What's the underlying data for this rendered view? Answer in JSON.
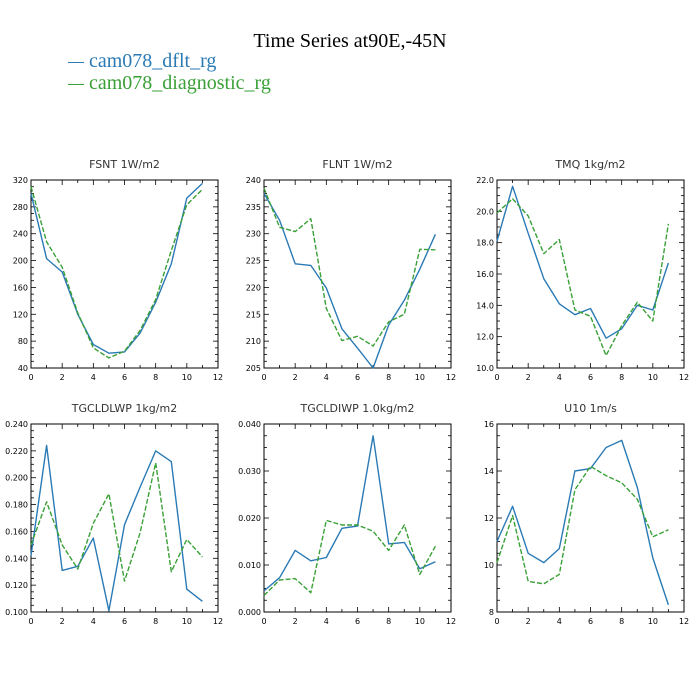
{
  "title": "Time Series at90E,-45N",
  "legend": [
    {
      "name": "cam078_dflt_rg",
      "color": "#2a7ab5"
    },
    {
      "name": "cam078_diagnostic_rg",
      "color": "#3aa037"
    }
  ],
  "chart_data": [
    {
      "type": "line",
      "title": "FSNT   1W/m2",
      "x": [
        0,
        1,
        2,
        3,
        4,
        5,
        6,
        7,
        8,
        9,
        10,
        11
      ],
      "xlim": [
        0,
        12
      ],
      "xticks": [
        "0",
        "2",
        "4",
        "6",
        "8",
        "10",
        "12"
      ],
      "ylim": [
        40,
        320
      ],
      "yticks": [
        "40",
        "80",
        "120",
        "160",
        "200",
        "240",
        "280",
        "320"
      ],
      "series": [
        {
          "name": "cam078_dflt_rg",
          "values": [
            300,
            203,
            183,
            120,
            75,
            62,
            64,
            92,
            138,
            195,
            293,
            315
          ]
        },
        {
          "name": "cam078_diagnostic_rg",
          "values": [
            310,
            228,
            190,
            122,
            70,
            55,
            65,
            96,
            142,
            215,
            283,
            306
          ]
        }
      ]
    },
    {
      "type": "line",
      "title": "FLNT   1W/m2",
      "x": [
        0,
        1,
        2,
        3,
        4,
        5,
        6,
        7,
        8,
        9,
        10,
        11
      ],
      "xlim": [
        0,
        12
      ],
      "xticks": [
        "0",
        "2",
        "4",
        "6",
        "8",
        "10",
        "12"
      ],
      "ylim": [
        205,
        240
      ],
      "yticks": [
        "205",
        "210",
        "215",
        "220",
        "225",
        "230",
        "235",
        "240"
      ],
      "series": [
        {
          "name": "cam078_dflt_rg",
          "values": [
            237.5,
            232.5,
            224.4,
            224.1,
            219.9,
            212.3,
            208.7,
            205,
            213,
            217.6,
            223.4,
            229.9
          ]
        },
        {
          "name": "cam078_diagnostic_rg",
          "values": [
            238.5,
            231.2,
            230.4,
            232.8,
            216.1,
            210.1,
            210.9,
            209.1,
            213.6,
            215.0,
            227.1,
            227.0
          ]
        }
      ]
    },
    {
      "type": "line",
      "title": "TMQ   1kg/m2",
      "x": [
        0,
        1,
        2,
        3,
        4,
        5,
        6,
        7,
        8,
        9,
        10,
        11
      ],
      "xlim": [
        0,
        12
      ],
      "xticks": [
        "0",
        "2",
        "4",
        "6",
        "8",
        "10",
        "12"
      ],
      "ylim": [
        10,
        22
      ],
      "yticks": [
        "10.0",
        "12.0",
        "14.0",
        "16.0",
        "18.0",
        "20.0",
        "22.0"
      ],
      "series": [
        {
          "name": "cam078_dflt_rg",
          "values": [
            18.1,
            21.6,
            18.6,
            15.7,
            14.1,
            13.4,
            13.8,
            11.9,
            12.5,
            14.0,
            13.7,
            16.7
          ]
        },
        {
          "name": "cam078_diagnostic_rg",
          "values": [
            19.9,
            20.8,
            19.7,
            17.3,
            18.2,
            13.7,
            13.3,
            10.8,
            12.7,
            14.2,
            13.0,
            19.2
          ]
        }
      ]
    },
    {
      "type": "line",
      "title": "TGCLDLWP   1kg/m2",
      "x": [
        0,
        1,
        2,
        3,
        4,
        5,
        6,
        7,
        8,
        9,
        10,
        11
      ],
      "xlim": [
        0,
        12
      ],
      "xticks": [
        "0",
        "2",
        "4",
        "6",
        "8",
        "10",
        "12"
      ],
      "ylim": [
        0.1,
        0.24
      ],
      "yticks": [
        "0.100",
        "0.120",
        "0.140",
        "0.160",
        "0.180",
        "0.200",
        "0.220",
        "0.240"
      ],
      "series": [
        {
          "name": "cam078_dflt_rg",
          "values": [
            0.142,
            0.224,
            0.131,
            0.134,
            0.155,
            0.101,
            0.165,
            0.193,
            0.22,
            0.212,
            0.117,
            0.108
          ]
        },
        {
          "name": "cam078_diagnostic_rg",
          "values": [
            0.15,
            0.182,
            0.15,
            0.132,
            0.166,
            0.188,
            0.123,
            0.159,
            0.211,
            0.13,
            0.154,
            0.141
          ]
        }
      ]
    },
    {
      "type": "line",
      "title": "TGCLDIWP   1.0kg/m2",
      "x": [
        0,
        1,
        2,
        3,
        4,
        5,
        6,
        7,
        8,
        9,
        10,
        11
      ],
      "xlim": [
        0,
        12
      ],
      "xticks": [
        "0",
        "2",
        "4",
        "6",
        "8",
        "10",
        "12"
      ],
      "ylim": [
        0,
        0.04
      ],
      "yticks": [
        "0.000",
        "0.010",
        "0.020",
        "0.030",
        "0.040"
      ],
      "series": [
        {
          "name": "cam078_dflt_rg",
          "values": [
            0.0045,
            0.0073,
            0.0131,
            0.0109,
            0.0116,
            0.0178,
            0.0183,
            0.0375,
            0.0145,
            0.0148,
            0.0092,
            0.0107
          ]
        },
        {
          "name": "cam078_diagnostic_rg",
          "values": [
            0.0035,
            0.0068,
            0.0071,
            0.0041,
            0.0195,
            0.0185,
            0.0185,
            0.0172,
            0.0131,
            0.0185,
            0.008,
            0.014
          ]
        }
      ]
    },
    {
      "type": "line",
      "title": "U10   1m/s",
      "x": [
        0,
        1,
        2,
        3,
        4,
        5,
        6,
        7,
        8,
        9,
        10,
        11
      ],
      "xlim": [
        0,
        12
      ],
      "xticks": [
        "0",
        "2",
        "4",
        "6",
        "8",
        "10",
        "12"
      ],
      "ylim": [
        8,
        16
      ],
      "yticks": [
        "8",
        "10",
        "12",
        "14",
        "16"
      ],
      "series": [
        {
          "name": "cam078_dflt_rg",
          "values": [
            11.0,
            12.5,
            10.5,
            10.1,
            10.7,
            14.0,
            14.1,
            15.0,
            15.3,
            13.3,
            10.3,
            8.3
          ]
        },
        {
          "name": "cam078_diagnostic_rg",
          "values": [
            10.1,
            12.1,
            9.3,
            9.2,
            9.6,
            13.2,
            14.2,
            13.8,
            13.5,
            12.8,
            11.2,
            11.5
          ]
        }
      ]
    }
  ]
}
